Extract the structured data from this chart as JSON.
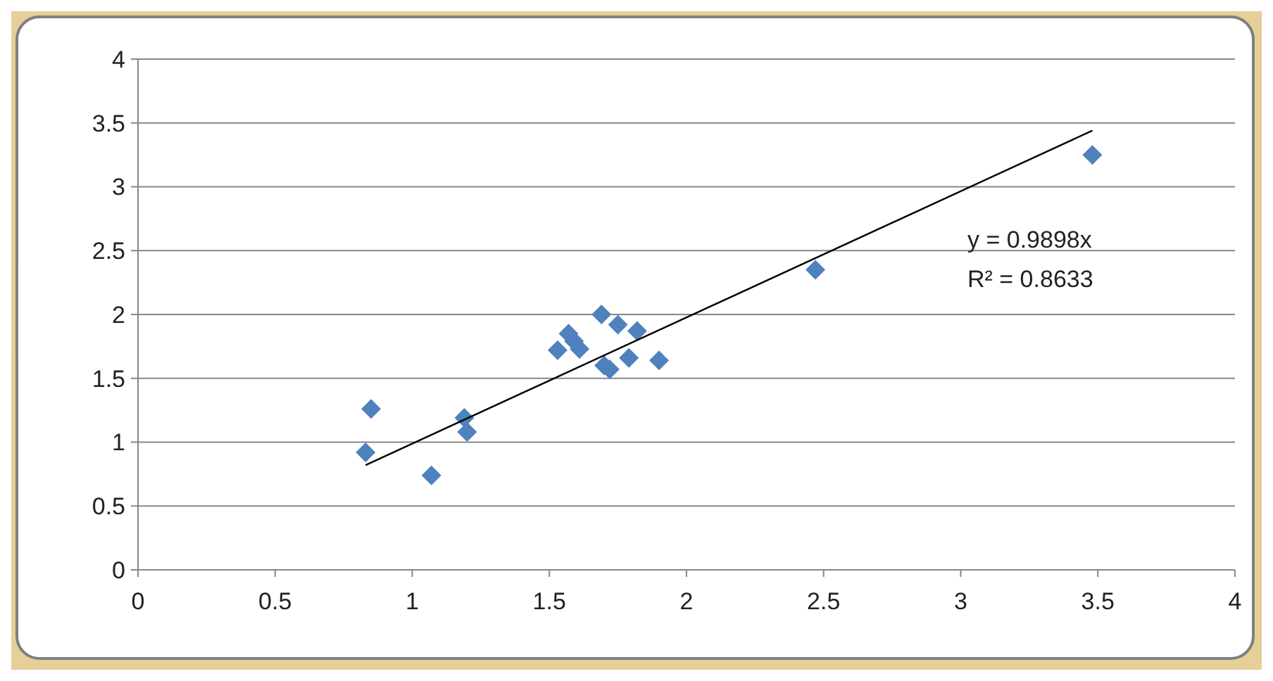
{
  "chart_data": {
    "type": "scatter",
    "xlim": [
      0,
      4
    ],
    "ylim": [
      0,
      4
    ],
    "xticks": [
      0,
      0.5,
      1,
      1.5,
      2,
      2.5,
      3,
      3.5,
      4
    ],
    "yticks": [
      0,
      0.5,
      1,
      1.5,
      2,
      2.5,
      3,
      3.5,
      4
    ],
    "grid": "y",
    "marker": "diamond",
    "series": [
      {
        "color": "#4f81bd",
        "x": [
          0.83,
          0.85,
          1.07,
          1.19,
          1.2,
          1.53,
          1.57,
          1.59,
          1.61,
          1.69,
          1.7,
          1.72,
          1.75,
          1.79,
          1.82,
          1.9,
          2.47,
          3.48
        ],
        "values": [
          0.92,
          1.26,
          0.74,
          1.19,
          1.08,
          1.72,
          1.85,
          1.79,
          1.73,
          2.0,
          1.6,
          1.57,
          1.92,
          1.66,
          1.87,
          1.64,
          2.35,
          3.25
        ]
      },
      {
        "type": "line",
        "color": "#000000",
        "marker": "none",
        "x": [
          0.83,
          3.48
        ],
        "values": [
          0.82,
          3.44
        ]
      }
    ],
    "annotations": [
      "y = 0.9898x",
      "R² = 0.8633"
    ]
  }
}
